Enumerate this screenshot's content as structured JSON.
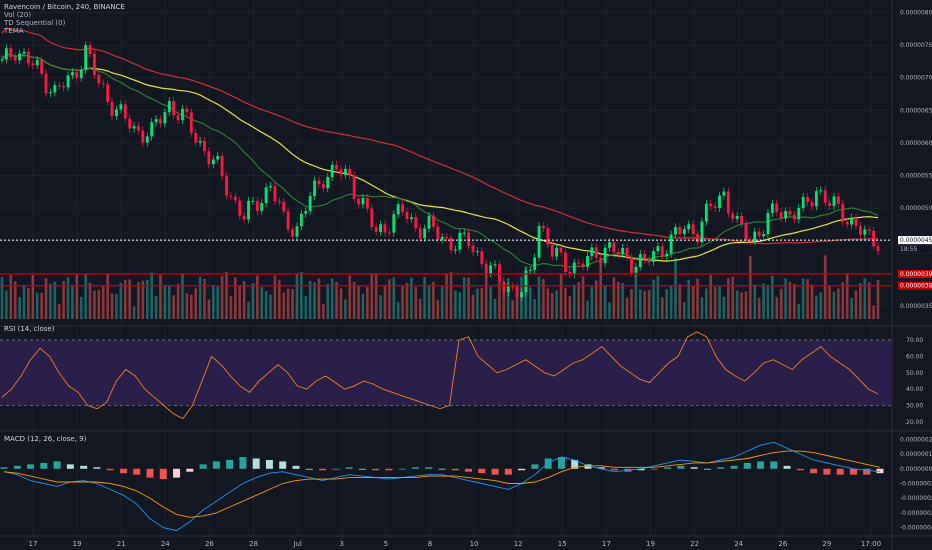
{
  "chart_data": {
    "type": "candlestick",
    "title": "Ravencoin / Bitcoin, 240, BINANCE",
    "indicators": [
      "Vol (20)",
      "TD Sequential (0)",
      "TEMA"
    ],
    "x_ticks": [
      "17",
      "19",
      "21",
      "24",
      "26",
      "28",
      "Jul",
      "3",
      "5",
      "8",
      "10",
      "12",
      "15",
      "17",
      "19",
      "22",
      "24",
      "26",
      "29",
      "17:00"
    ],
    "price_axis": {
      "ticks": [
        "0.00000800",
        "0.00000750",
        "0.00000700",
        "0.00000650",
        "0.00000600",
        "0.00000550",
        "0.00000500",
        "0.00000450",
        "0.00000400",
        "0.00000350"
      ],
      "range": [
        3.3e-06,
        8.1e-06
      ],
      "last_price": "0.00000451",
      "countdown": "18:55",
      "levels": [
        {
          "label": "0.00000399",
          "value": 3.99e-06,
          "color": "#cc0000"
        },
        {
          "label": "0.00000381",
          "value": 3.81e-06,
          "color": "#cc0000"
        }
      ]
    },
    "price_path": [
      [
        0,
        7.2e-06
      ],
      [
        3,
        7.45e-06
      ],
      [
        8,
        7.12e-06
      ],
      [
        12,
        6.78e-06
      ],
      [
        16,
        7e-06
      ],
      [
        19,
        7.42e-06
      ],
      [
        22,
        6.9e-06
      ],
      [
        26,
        6.5e-06
      ],
      [
        30,
        6.2e-06
      ],
      [
        34,
        6.15e-06
      ],
      [
        38,
        6.6e-06
      ],
      [
        41,
        6.4e-06
      ],
      [
        45,
        6e-06
      ],
      [
        49,
        5.6e-06
      ],
      [
        52,
        5.2e-06
      ],
      [
        55,
        4.85e-06
      ],
      [
        58,
        5.1e-06
      ],
      [
        61,
        5.35e-06
      ],
      [
        64,
        4.8e-06
      ],
      [
        67,
        4.7e-06
      ],
      [
        70,
        5.15e-06
      ],
      [
        73,
        5.5e-06
      ],
      [
        76,
        5.58e-06
      ],
      [
        79,
        5.45e-06
      ],
      [
        82,
        5.05e-06
      ],
      [
        85,
        4.6e-06
      ],
      [
        88,
        4.8e-06
      ],
      [
        91,
        4.95e-06
      ],
      [
        94,
        4.72e-06
      ],
      [
        97,
        4.7e-06
      ],
      [
        100,
        4.55e-06
      ],
      [
        103,
        4.45e-06
      ],
      [
        106,
        4.5e-06
      ],
      [
        109,
        4.2e-06
      ],
      [
        112,
        3.95e-06
      ],
      [
        115,
        3.8e-06
      ],
      [
        118,
        3.7e-06
      ],
      [
        120,
        4e-06
      ],
      [
        122,
        4.8e-06
      ],
      [
        125,
        4.3e-06
      ],
      [
        128,
        4.15e-06
      ],
      [
        131,
        4.1e-06
      ],
      [
        134,
        4.25e-06
      ],
      [
        137,
        4.4e-06
      ],
      [
        140,
        4.3e-06
      ],
      [
        143,
        4.2e-06
      ],
      [
        146,
        4.15e-06
      ],
      [
        149,
        4.35e-06
      ],
      [
        152,
        4.5e-06
      ],
      [
        155,
        4.7e-06
      ],
      [
        158,
        4.65e-06
      ],
      [
        161,
        5e-06
      ],
      [
        164,
        5.25e-06
      ],
      [
        167,
        4.7e-06
      ],
      [
        170,
        4.55e-06
      ],
      [
        173,
        4.7e-06
      ],
      [
        176,
        5e-06
      ],
      [
        179,
        4.9e-06
      ],
      [
        182,
        4.98e-06
      ],
      [
        185,
        5.3e-06
      ],
      [
        188,
        5.05e-06
      ],
      [
        191,
        4.95e-06
      ],
      [
        194,
        4.7e-06
      ],
      [
        197,
        4.52e-06
      ]
    ],
    "rsi": {
      "label": "RSI (14, close)",
      "ticks": [
        "70.00",
        "60.00",
        "50.00",
        "40.00",
        "30.00",
        "20.00"
      ],
      "range": [
        15,
        78
      ],
      "band": [
        30,
        70
      ],
      "values": [
        35,
        40,
        48,
        58,
        65,
        60,
        50,
        42,
        38,
        30,
        28,
        32,
        45,
        52,
        48,
        40,
        35,
        30,
        25,
        22,
        30,
        45,
        60,
        55,
        48,
        42,
        38,
        45,
        50,
        55,
        50,
        42,
        40,
        45,
        48,
        44,
        40,
        42,
        45,
        43,
        40,
        38,
        36,
        34,
        32,
        30,
        28,
        30,
        70,
        72,
        60,
        55,
        50,
        52,
        55,
        58,
        54,
        50,
        48,
        52,
        56,
        58,
        62,
        66,
        60,
        54,
        50,
        46,
        44,
        50,
        56,
        60,
        72,
        75,
        72,
        60,
        52,
        48,
        45,
        50,
        56,
        58,
        55,
        52,
        58,
        62,
        66,
        60,
        56,
        52,
        46,
        40,
        37
      ]
    },
    "macd": {
      "label": "MACD (12, 26, close, 9)",
      "ticks": [
        "0.00000020",
        "0.00000010",
        "0.00000000",
        "-0.00000010",
        "-0.00000020",
        "-0.00000030",
        "-0.00000040"
      ],
      "range": [
        -4.5e-07,
        2.5e-07
      ],
      "macd": [
        -2,
        -4,
        -8,
        -10,
        -12,
        -9,
        -8,
        -10,
        -14,
        -18,
        -24,
        -34,
        -40,
        -42,
        -36,
        -28,
        -22,
        -16,
        -10,
        -6,
        -3,
        -2,
        -4,
        -6,
        -8,
        -6,
        -4,
        -5,
        -6,
        -7,
        -6,
        -5,
        -4,
        -4,
        -6,
        -8,
        -10,
        -12,
        -14,
        -10,
        -4,
        4,
        8,
        6,
        2,
        0,
        -2,
        -1,
        0,
        2,
        4,
        6,
        5,
        4,
        6,
        8,
        12,
        16,
        18,
        14,
        10,
        6,
        4,
        2,
        0,
        -1,
        -2
      ],
      "signal": [
        -2,
        -3,
        -5,
        -7,
        -9,
        -9,
        -9,
        -9,
        -10,
        -12,
        -15,
        -20,
        -26,
        -31,
        -33,
        -32,
        -30,
        -26,
        -22,
        -18,
        -14,
        -10,
        -8,
        -7,
        -7,
        -7,
        -6,
        -6,
        -6,
        -6,
        -6,
        -6,
        -5,
        -5,
        -5,
        -6,
        -7,
        -8,
        -10,
        -10,
        -9,
        -6,
        -2,
        1,
        2,
        2,
        1,
        1,
        1,
        1,
        2,
        3,
        4,
        4,
        5,
        6,
        7,
        9,
        11,
        12,
        12,
        11,
        9,
        7,
        5,
        3,
        1
      ],
      "hist": [
        1,
        2,
        3,
        4,
        5,
        3,
        2,
        1,
        -1,
        -3,
        -4,
        -6,
        -7,
        -6,
        -2,
        3,
        5,
        6,
        8,
        7,
        6,
        5,
        2,
        0,
        -1,
        0,
        1,
        0,
        -1,
        -1,
        0,
        1,
        1,
        0,
        -1,
        -2,
        -3,
        -4,
        -4,
        -1,
        3,
        7,
        8,
        6,
        3,
        1,
        -1,
        -2,
        -1,
        0,
        1,
        2,
        1,
        0,
        1,
        2,
        4,
        5,
        5,
        2,
        -1,
        -3,
        -4,
        -4,
        -4,
        -4,
        -3
      ]
    },
    "colors": {
      "bull": "#26a69a",
      "bear": "#ef5350",
      "candle_up": "#00e676",
      "candle_down": "#ff1744",
      "ema_red": "#d32f2f",
      "ema_yellow": "#e5e54b",
      "ema_green": "#2e7d32",
      "rsi_line": "#f5821f",
      "rsi_band": "#2a1e4a",
      "macd_line": "#2196f3",
      "signal_line": "#ff9800"
    }
  }
}
